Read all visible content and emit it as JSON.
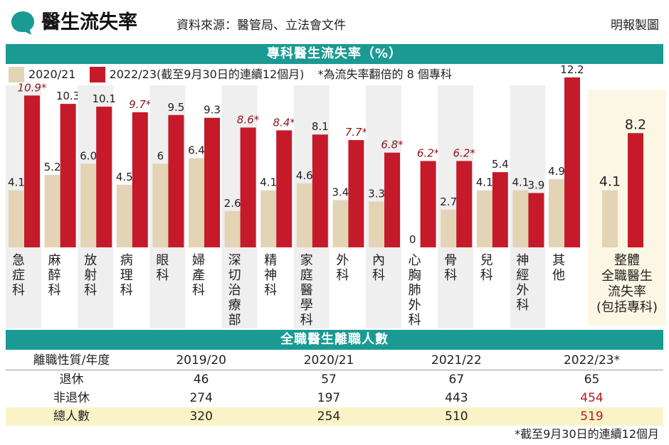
{
  "header": {
    "title": "醫生流失率",
    "source": "資料來源：醫管局、立法會文件",
    "credit": "明報製圖"
  },
  "chart_data": [
    {
      "type": "bar",
      "title": "專科醫生流失率（%）",
      "legend": {
        "series1": "2020/21",
        "series2": "2022/23(截至9月30日的連續12個月)",
        "note": "*為流失率翻倍的 8 個專科"
      },
      "categories": [
        "急症科",
        "麻醉科",
        "放射科",
        "病理科",
        "眼科",
        "婦產科",
        "深切治療部",
        "精神科",
        "家庭醫學科",
        "外科",
        "內科",
        "心胸肺外科",
        "骨科",
        "兒科",
        "神經外科",
        "其他",
        "整體全職醫生流失率(包括專科)"
      ],
      "category_lines": [
        [
          "急",
          "症",
          "科"
        ],
        [
          "麻",
          "醉",
          "科"
        ],
        [
          "放",
          "射",
          "科"
        ],
        [
          "病",
          "理",
          "科"
        ],
        [
          "眼",
          "科"
        ],
        [
          "婦",
          "產",
          "科"
        ],
        [
          "深",
          "切",
          "治",
          "療",
          "部"
        ],
        [
          "精",
          "神",
          "科"
        ],
        [
          "家",
          "庭",
          "醫",
          "學",
          "科"
        ],
        [
          "外",
          "科"
        ],
        [
          "內",
          "科"
        ],
        [
          "心",
          "胸",
          "肺",
          "外",
          "科"
        ],
        [
          "骨",
          "科"
        ],
        [
          "兒",
          "科"
        ],
        [
          "神",
          "經",
          "外",
          "科"
        ],
        [
          "其",
          "他"
        ],
        [
          "整體",
          "全職醫生",
          "流失率",
          "(包括專科)"
        ]
      ],
      "series": [
        {
          "name": "2020/21",
          "values": [
            4.1,
            5.2,
            6.0,
            4.5,
            6,
            6.4,
            2.6,
            4.1,
            4.6,
            3.4,
            3.3,
            0,
            2.7,
            4.1,
            4.1,
            4.9,
            4.1
          ],
          "labels": [
            "4.1",
            "5.2",
            "6.0",
            "4.5",
            "6",
            "6.4",
            "2.6",
            "4.1",
            "4.6",
            "3.4",
            "3.3",
            "0",
            "2.7",
            "4.1",
            "4.1",
            "4.9",
            "4.1"
          ]
        },
        {
          "name": "2022/23(截至9月30日的連續12個月)",
          "values": [
            10.9,
            10.3,
            10.1,
            9.7,
            9.5,
            9.3,
            8.6,
            8.4,
            8.1,
            7.7,
            6.8,
            6.2,
            6.2,
            5.4,
            3.9,
            12.2,
            8.2
          ],
          "labels": [
            "10.9*",
            "10.3",
            "10.1",
            "9.7*",
            "9.5",
            "9.3",
            "8.6*",
            "8.4*",
            "8.1",
            "7.7*",
            "6.8*",
            "6.2*",
            "6.2*",
            "5.4",
            "3.9",
            "12.2",
            "8.2"
          ],
          "doubled": [
            true,
            false,
            false,
            true,
            false,
            false,
            true,
            true,
            false,
            true,
            true,
            true,
            true,
            false,
            false,
            false,
            false
          ]
        }
      ],
      "ylim": [
        0,
        12.5
      ],
      "colors": {
        "series1": "#e3d4b6",
        "series2": "#c41a2a",
        "highlight_text": "#8b1a22",
        "normal_text": "#222222",
        "column_bg": "#efefef",
        "overall_bg": "#fbf7e4"
      }
    },
    {
      "type": "table",
      "title": "全職醫生離職人數",
      "headers": [
        "離職性質/年度",
        "2019/20",
        "2020/21",
        "2021/22",
        "2022/23*"
      ],
      "rows": [
        {
          "label": "退休",
          "values": [
            "46",
            "57",
            "67",
            "65"
          ]
        },
        {
          "label": "非退休",
          "values": [
            "274",
            "197",
            "443",
            "454"
          ]
        },
        {
          "label": "總人數",
          "values": [
            "320",
            "254",
            "510",
            "519"
          ]
        }
      ]
    }
  ],
  "footnote": "*截至9月30日的連續12個月",
  "colors": {
    "teal": "#1a9a93",
    "red": "#c41a2a",
    "beige": "#e3d4b6",
    "total_row": "#fbf3c8"
  }
}
